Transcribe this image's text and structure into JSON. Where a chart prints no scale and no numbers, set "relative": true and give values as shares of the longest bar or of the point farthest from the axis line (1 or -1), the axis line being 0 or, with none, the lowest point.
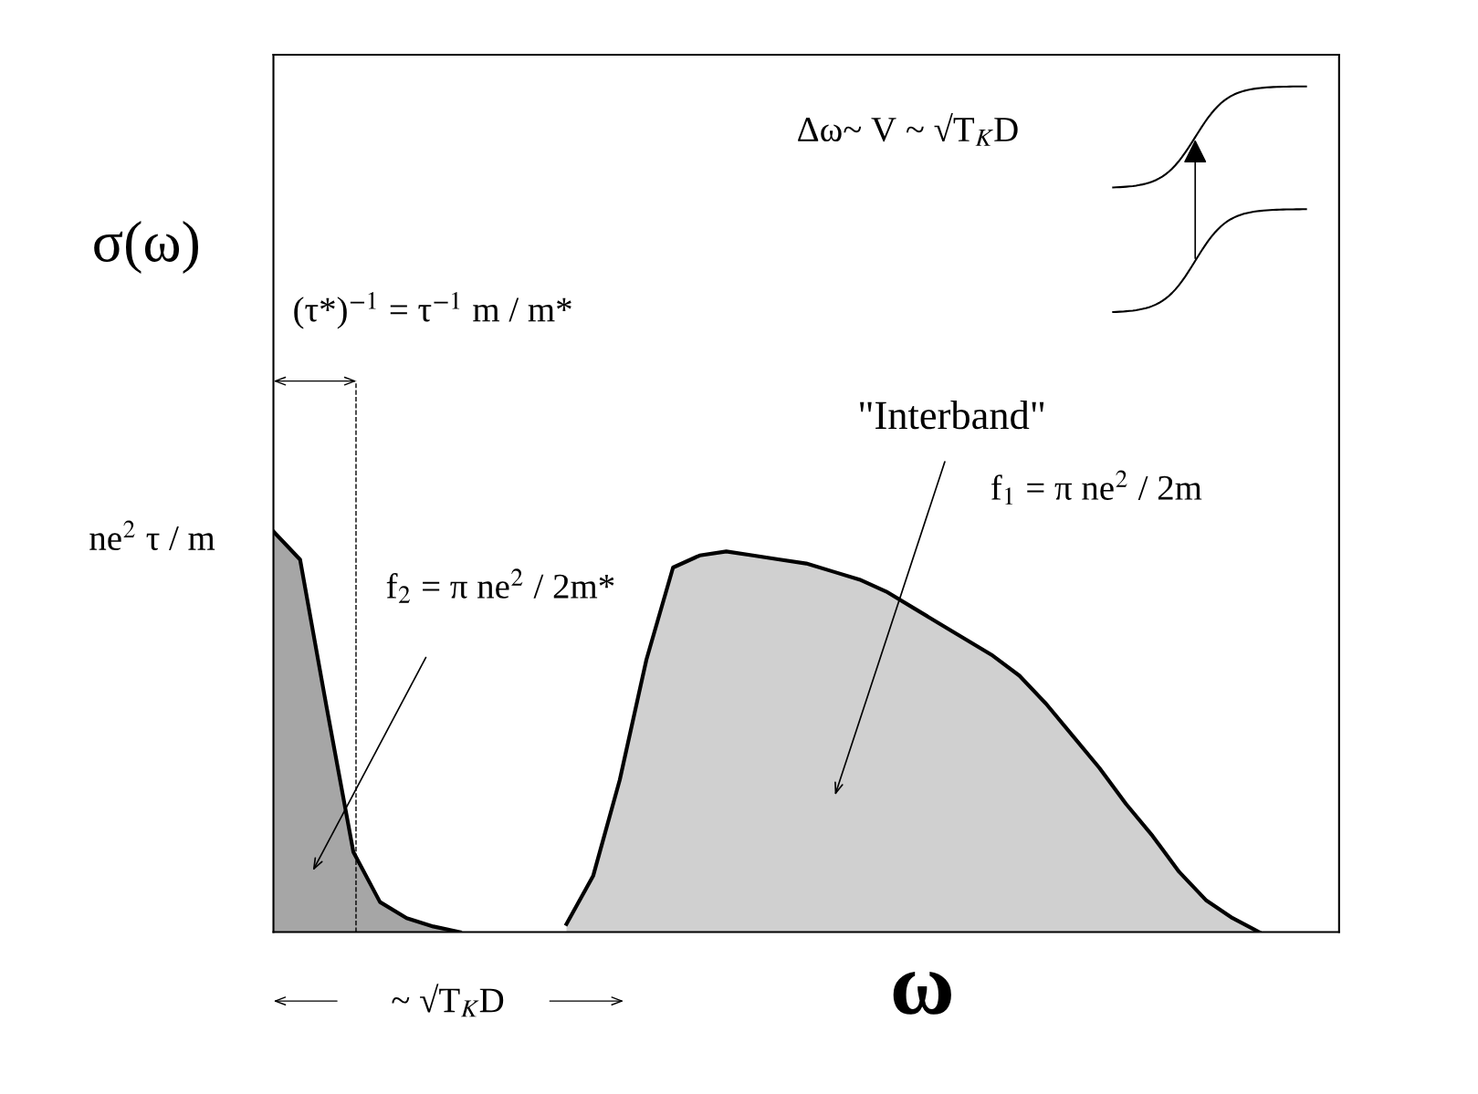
{
  "chart_data": {
    "type": "area",
    "relative": true,
    "xlabel": "ω",
    "ylabel": "σ(ω)",
    "categories": [
      null,
      null,
      null,
      null,
      null,
      null,
      null,
      null,
      null,
      null,
      null,
      null,
      null,
      null,
      null,
      null,
      null,
      null,
      null,
      null,
      null,
      null,
      null,
      null,
      null,
      null,
      null,
      null,
      null,
      null,
      null,
      null,
      null,
      null,
      null,
      null,
      null,
      null,
      null,
      null,
      null
    ],
    "series": [
      {
        "color": "#a6a6a6",
        "values": [
          1.0,
          0.93,
          0.56,
          0.2,
          0.075,
          0.035,
          0.014,
          0.0,
          null,
          null,
          null,
          null,
          null,
          null,
          null,
          null,
          null,
          null,
          null,
          null,
          null,
          null,
          null,
          null,
          null,
          null,
          null,
          null,
          null,
          null,
          null,
          null,
          null,
          null,
          null,
          null,
          null,
          null,
          null,
          null,
          null
        ]
      },
      {
        "color": "#d0d0d0",
        "values": [
          null,
          null,
          null,
          null,
          null,
          null,
          null,
          null,
          null,
          null,
          null,
          0.02,
          0.14,
          0.38,
          0.68,
          0.91,
          0.94,
          0.95,
          0.94,
          0.93,
          0.92,
          0.9,
          0.88,
          0.85,
          0.81,
          0.77,
          0.73,
          0.69,
          0.64,
          0.57,
          0.49,
          0.41,
          0.32,
          0.24,
          0.15,
          0.08,
          0.035,
          0.0,
          null,
          null,
          null
        ]
      }
    ],
    "annotations": [
      "ne$^{2}$ τ / m",
      "(τ*)$^{−1}$ = τ$^{−1}$ m / m*",
      "f$_{2}$ = π ne$^{2}$ / 2m*",
      "\"Interband\"",
      "f$_{1}$ = π ne$^{2}$ / 2m",
      "Δω~ V ~ √T$_{K}$D",
      "~ √T$_{K}$D"
    ]
  }
}
